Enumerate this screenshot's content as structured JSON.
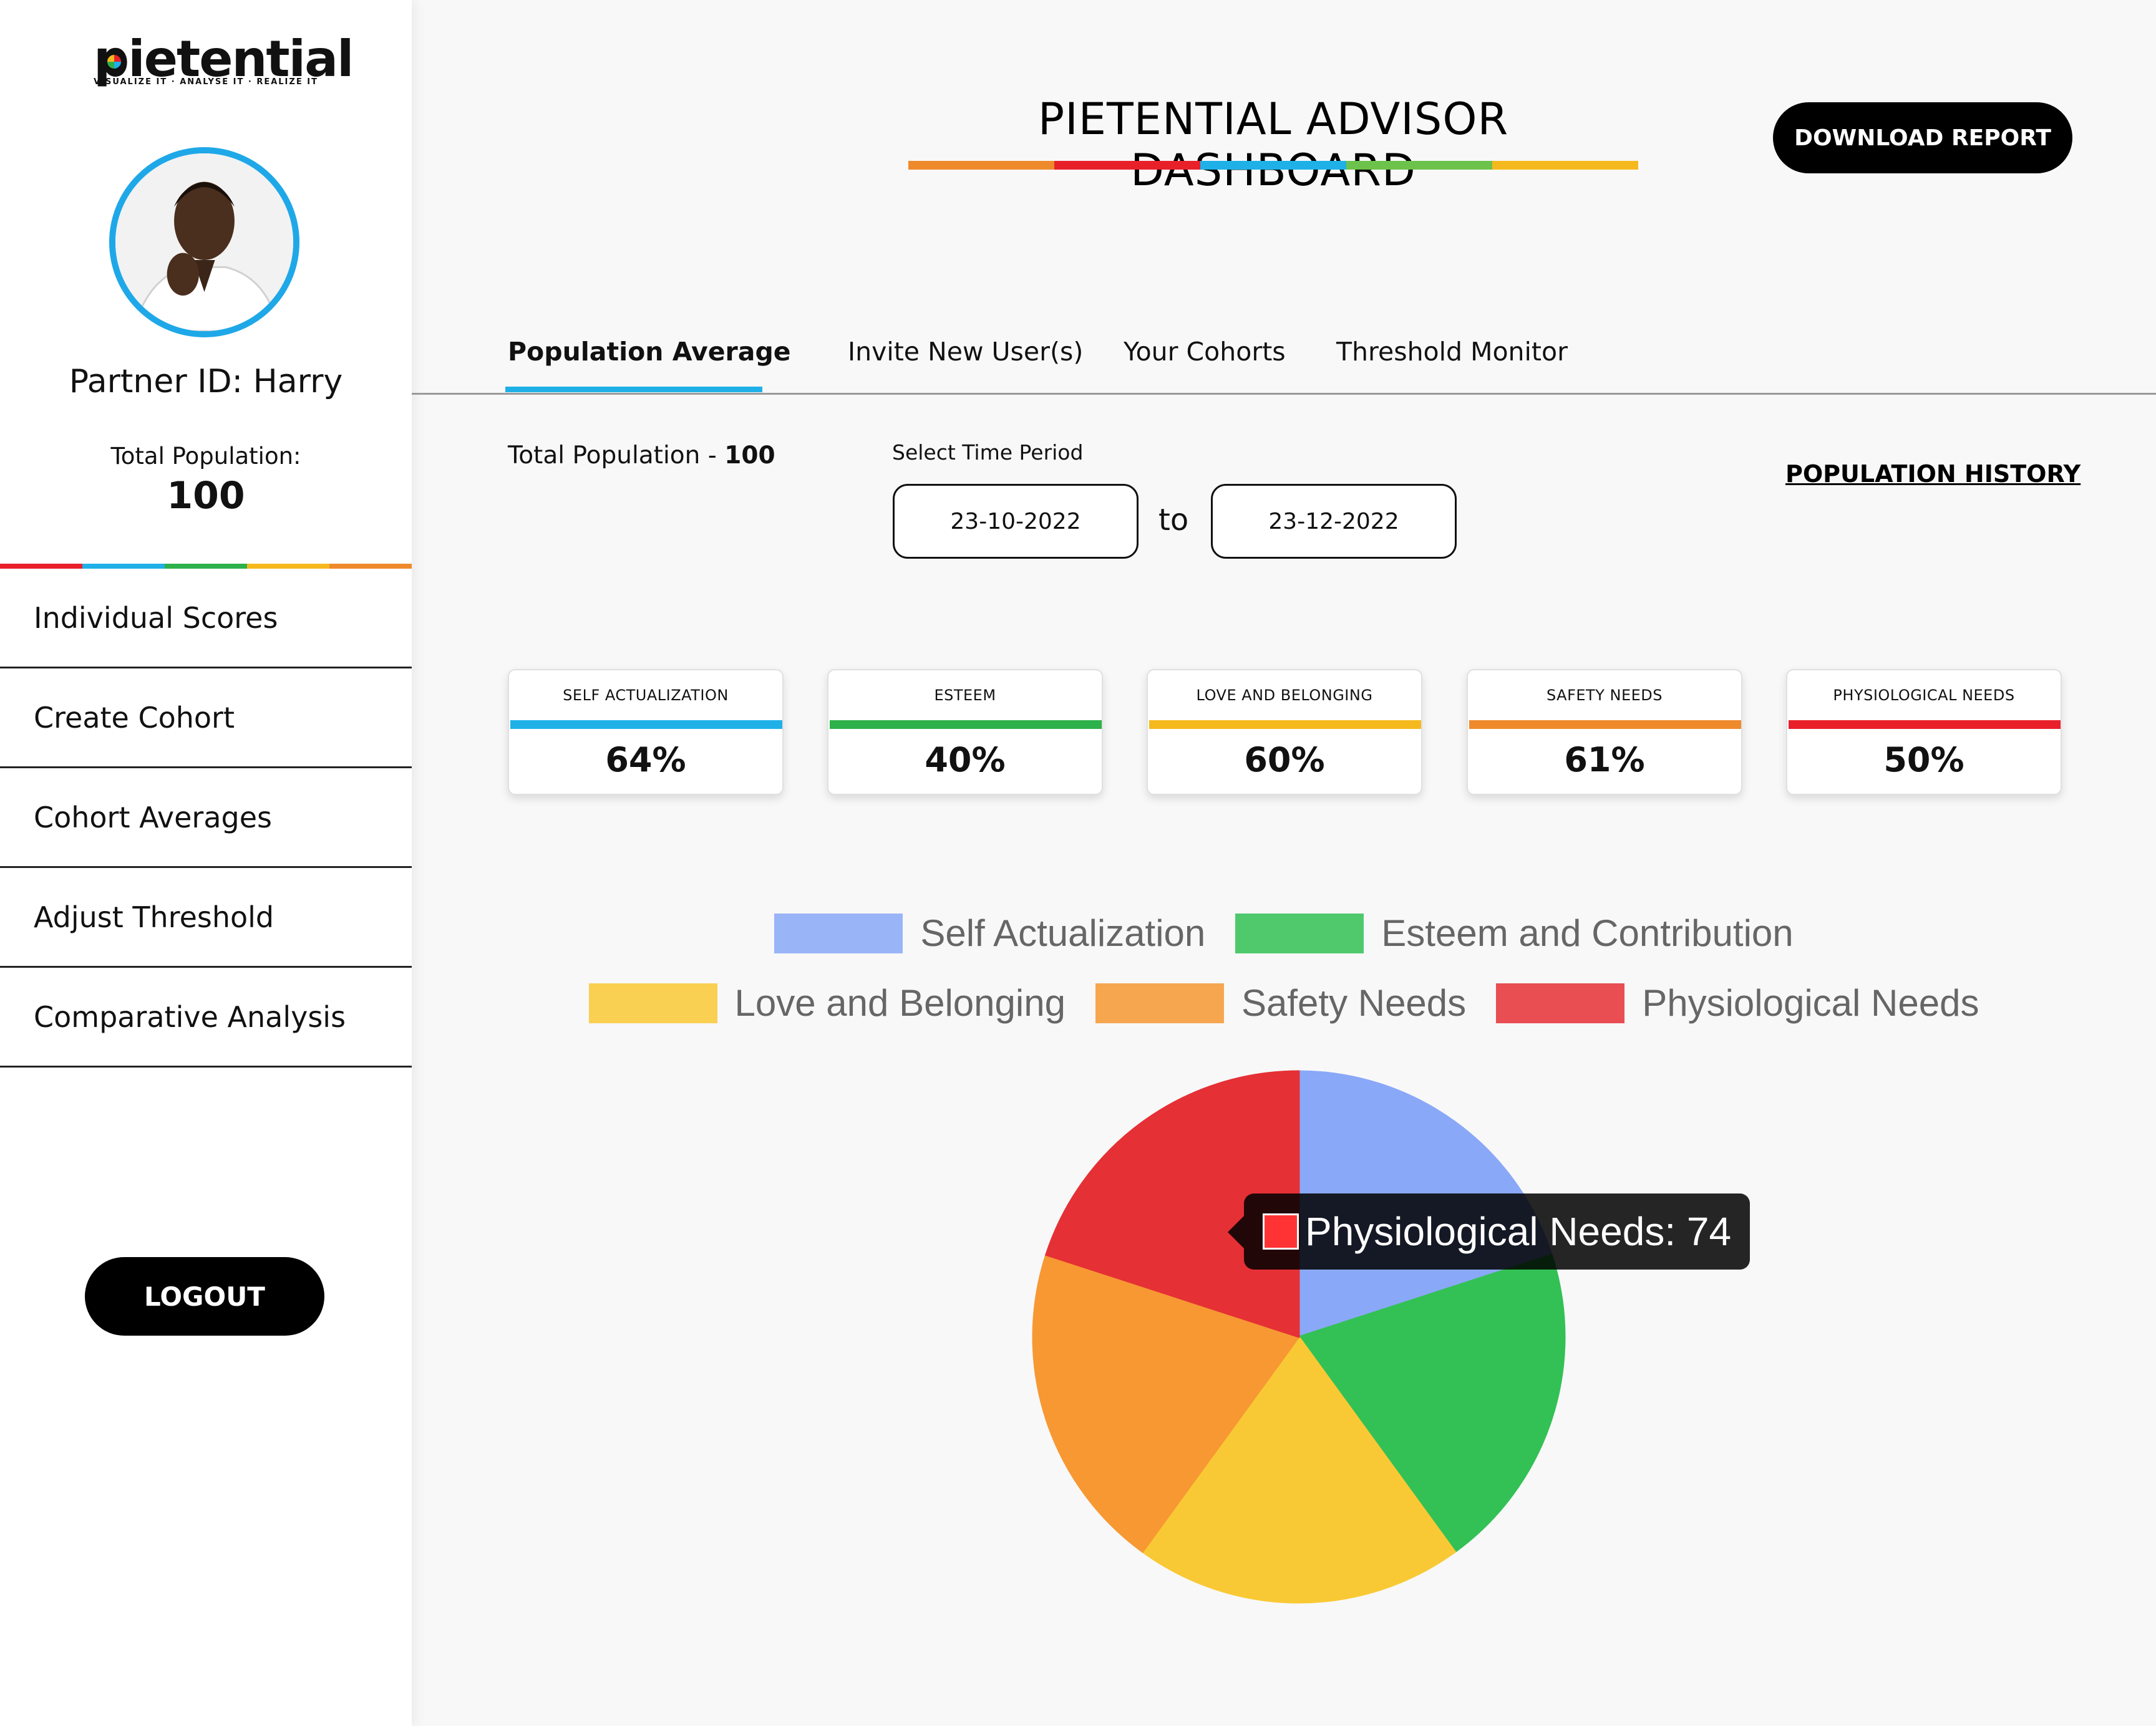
{
  "sidebar": {
    "logo_text": "pietential",
    "logo_tagline": "VISUALIZE IT · ANALYSE IT · REALIZE IT",
    "partner_id": "Partner ID: Harry",
    "total_population_label": "Total Population:",
    "total_population_value": "100",
    "rainbow_colors": [
      "#e8202a",
      "#1fb0e8",
      "#2db14a",
      "#f6b91d",
      "#ee8a2c"
    ],
    "nav_items": [
      {
        "label": "Individual Scores"
      },
      {
        "label": "Create Cohort"
      },
      {
        "label": "Cohort Averages"
      },
      {
        "label": "Adjust Threshold"
      },
      {
        "label": "Comparative Analysis"
      }
    ],
    "logout_label": "LOGOUT"
  },
  "header": {
    "title": "PIETENTIAL ADVISOR DASHBOARD",
    "title_rainbow_colors": [
      "#ee8a2c",
      "#e8202a",
      "#1fb0e8",
      "#6cc24a",
      "#f6b91d"
    ],
    "download_label": "DOWNLOAD REPORT"
  },
  "tabs": [
    {
      "label": "Population Average",
      "active": true
    },
    {
      "label": "Invite New User(s)",
      "active": false
    },
    {
      "label": "Your Cohorts",
      "active": false
    },
    {
      "label": "Threshold Monitor",
      "active": false
    }
  ],
  "filters": {
    "total_population_label": "Total Population - ",
    "total_population_value": "100",
    "period_label": "Select Time Period",
    "start_date": "23-10-2022",
    "to_label": "to",
    "end_date": "23-12-2022",
    "history_link": "POPULATION HISTORY"
  },
  "score_cards": [
    {
      "label": "SELF ACTUALIZATION",
      "value": "64%",
      "color": "#1fb0e8"
    },
    {
      "label": "ESTEEM",
      "value": "40%",
      "color": "#2db14a"
    },
    {
      "label": "LOVE AND BELONGING",
      "value": "60%",
      "color": "#f6b91d"
    },
    {
      "label": "SAFETY NEEDS",
      "value": "61%",
      "color": "#ee8a2c"
    },
    {
      "label": "PHYSIOLOGICAL NEEDS",
      "value": "50%",
      "color": "#e8202a"
    }
  ],
  "chart_data": {
    "type": "pie",
    "title": "",
    "legend_position": "top",
    "categories": [
      "Self Actualization",
      "Esteem and Contribution",
      "Love and Belonging",
      "Safety Needs",
      "Physiological Needs"
    ],
    "values": [
      74,
      74,
      74,
      74,
      74
    ],
    "colors": [
      "#8aa8f8",
      "#33c155",
      "#f9c935",
      "#f79833",
      "#e53035"
    ],
    "highlighted": "Physiological Needs",
    "tooltip": "Physiological Needs: 74"
  }
}
